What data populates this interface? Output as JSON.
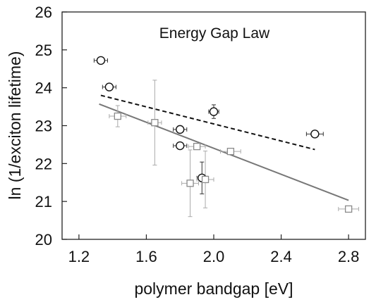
{
  "chart_data": {
    "type": "scatter",
    "title": "Energy Gap Law",
    "xlabel": "polymer bandgap [eV]",
    "ylabel": "ln (1/exciton lifetime)",
    "xlim": [
      1.1,
      2.9
    ],
    "ylim": [
      20,
      26
    ],
    "xticks": [
      "1.2",
      "1.6",
      "2.0",
      "2.4",
      "2.8"
    ],
    "xtick_values": [
      1.2,
      1.6,
      2.0,
      2.4,
      2.8
    ],
    "yticks": [
      "20",
      "21",
      "22",
      "23",
      "24",
      "25",
      "26"
    ],
    "ytick_values": [
      20,
      21,
      22,
      23,
      24,
      25,
      26
    ],
    "grid": false,
    "series": [
      {
        "marker": "circle",
        "color": "#111111",
        "points": [
          {
            "x": 1.33,
            "y": 24.72,
            "xerr": 0.04,
            "yerr": 0.07
          },
          {
            "x": 1.38,
            "y": 24.02,
            "xerr": 0.04,
            "yerr": 0.07
          },
          {
            "x": 1.8,
            "y": 22.9,
            "xerr": 0.04,
            "yerr": 0.07
          },
          {
            "x": 1.8,
            "y": 22.47,
            "xerr": 0.04,
            "yerr": 0.07
          },
          {
            "x": 2.0,
            "y": 23.37,
            "xerr": 0.03,
            "yerr": 0.18
          },
          {
            "x": 1.93,
            "y": 21.62,
            "xerr": 0.03,
            "yerr": 0.42
          },
          {
            "x": 2.6,
            "y": 22.78,
            "xerr": 0.05,
            "yerr": 0.07
          }
        ],
        "fit": {
          "x": [
            1.33,
            2.6
          ],
          "y": [
            23.8,
            22.37
          ],
          "style": "dashed"
        }
      },
      {
        "marker": "square",
        "color": "#8a8a8a",
        "points": [
          {
            "x": 1.43,
            "y": 23.25,
            "xerr": 0.05,
            "yerr": 0.28
          },
          {
            "x": 1.65,
            "y": 23.08,
            "xerr": 0.04,
            "yerr": 1.12
          },
          {
            "x": 1.86,
            "y": 21.48,
            "xerr": 0.05,
            "yerr": 0.88
          },
          {
            "x": 1.9,
            "y": 22.45,
            "xerr": 0.05,
            "yerr": 0.08
          },
          {
            "x": 1.95,
            "y": 21.58,
            "xerr": 0.05,
            "yerr": 0.75
          },
          {
            "x": 2.1,
            "y": 22.32,
            "xerr": 0.06,
            "yerr": 0.07
          },
          {
            "x": 2.8,
            "y": 20.8,
            "xerr": 0.06,
            "yerr": 0.07
          }
        ],
        "fit": {
          "x": [
            1.32,
            2.8
          ],
          "y": [
            23.57,
            21.03
          ],
          "style": "solid"
        }
      }
    ]
  }
}
